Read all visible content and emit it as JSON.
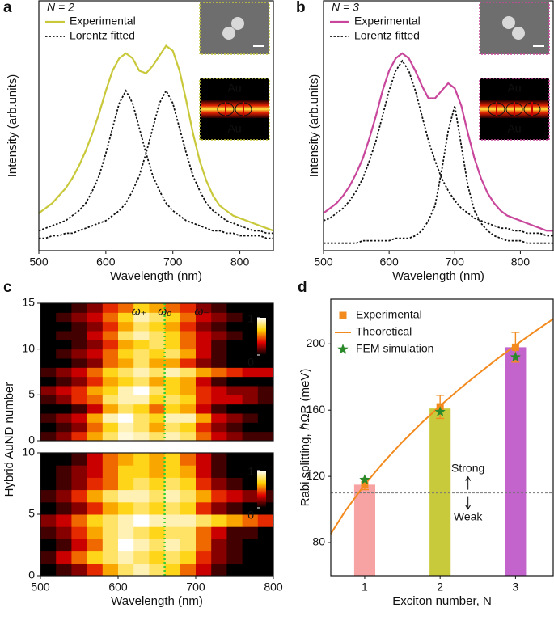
{
  "chart_data": [
    {
      "type": "line",
      "label": "a",
      "annotation": "N = 2",
      "xlabel": "Wavelength (nm)",
      "ylabel": "Intensity (arb.units)",
      "xlim": [
        500,
        850
      ],
      "ylim": [
        0,
        1
      ],
      "xticks": [
        500,
        600,
        700,
        800
      ],
      "inset_labels": [
        "Au",
        "Au"
      ],
      "x": [
        500,
        510,
        520,
        530,
        540,
        550,
        560,
        570,
        580,
        590,
        600,
        610,
        620,
        630,
        640,
        650,
        660,
        670,
        680,
        690,
        700,
        710,
        720,
        730,
        740,
        750,
        760,
        770,
        780,
        790,
        800,
        810,
        820,
        830,
        840,
        850
      ],
      "series": [
        {
          "name": "Experimental",
          "color": "#c8c83a",
          "values": [
            0.15,
            0.17,
            0.19,
            0.22,
            0.25,
            0.29,
            0.34,
            0.4,
            0.47,
            0.55,
            0.64,
            0.72,
            0.77,
            0.79,
            0.77,
            0.72,
            0.71,
            0.74,
            0.78,
            0.82,
            0.8,
            0.72,
            0.6,
            0.47,
            0.36,
            0.28,
            0.22,
            0.18,
            0.16,
            0.14,
            0.13,
            0.12,
            0.11,
            0.1,
            0.09,
            0.08
          ]
        },
        {
          "name": "Lorentz fitted",
          "color": "#111111",
          "dash": true,
          "values": [
            0.08,
            0.09,
            0.1,
            0.11,
            0.12,
            0.14,
            0.16,
            0.19,
            0.24,
            0.3,
            0.39,
            0.49,
            0.59,
            0.64,
            0.59,
            0.49,
            0.39,
            0.3,
            0.24,
            0.19,
            0.16,
            0.14,
            0.12,
            0.11,
            0.1,
            0.09,
            0.08,
            0.08,
            0.07,
            0.07,
            0.06,
            0.06,
            0.06,
            0.06,
            0.05,
            0.05
          ]
        },
        {
          "color": "#111111",
          "dash": true,
          "values": [
            0.05,
            0.05,
            0.06,
            0.06,
            0.07,
            0.07,
            0.08,
            0.09,
            0.1,
            0.11,
            0.12,
            0.14,
            0.16,
            0.19,
            0.24,
            0.3,
            0.39,
            0.49,
            0.59,
            0.64,
            0.59,
            0.49,
            0.39,
            0.3,
            0.24,
            0.19,
            0.16,
            0.14,
            0.12,
            0.11,
            0.1,
            0.09,
            0.08,
            0.08,
            0.07,
            0.07
          ]
        }
      ]
    },
    {
      "type": "line",
      "label": "b",
      "annotation": "N = 3",
      "xlabel": "Wavelength (nm)",
      "ylabel": "Intensity (arb.units)",
      "xlim": [
        500,
        850
      ],
      "ylim": [
        0,
        1
      ],
      "xticks": [
        500,
        600,
        700,
        800
      ],
      "inset_labels": [
        "Au",
        "Au"
      ],
      "x": [
        500,
        510,
        520,
        530,
        540,
        550,
        560,
        570,
        580,
        590,
        600,
        610,
        620,
        630,
        640,
        650,
        660,
        670,
        680,
        690,
        700,
        710,
        720,
        730,
        740,
        750,
        760,
        770,
        780,
        790,
        800,
        810,
        820,
        830,
        840,
        850
      ],
      "series": [
        {
          "name": "Experimental",
          "color": "#c8469b",
          "values": [
            0.15,
            0.17,
            0.19,
            0.22,
            0.26,
            0.31,
            0.37,
            0.45,
            0.54,
            0.64,
            0.72,
            0.77,
            0.79,
            0.77,
            0.72,
            0.66,
            0.61,
            0.61,
            0.64,
            0.67,
            0.65,
            0.58,
            0.47,
            0.37,
            0.29,
            0.23,
            0.19,
            0.16,
            0.14,
            0.13,
            0.12,
            0.11,
            0.1,
            0.09,
            0.08,
            0.08
          ]
        },
        {
          "name": "Lorentz fitted",
          "color": "#111111",
          "dash": true,
          "values": [
            0.12,
            0.13,
            0.15,
            0.17,
            0.2,
            0.24,
            0.29,
            0.36,
            0.44,
            0.54,
            0.64,
            0.72,
            0.76,
            0.72,
            0.64,
            0.54,
            0.44,
            0.36,
            0.29,
            0.24,
            0.2,
            0.17,
            0.15,
            0.13,
            0.12,
            0.11,
            0.1,
            0.09,
            0.09,
            0.08,
            0.08,
            0.07,
            0.07,
            0.07,
            0.06,
            0.06
          ]
        },
        {
          "color": "#111111",
          "dash": true,
          "values": [
            0.03,
            0.03,
            0.03,
            0.03,
            0.03,
            0.03,
            0.04,
            0.04,
            0.04,
            0.04,
            0.04,
            0.05,
            0.05,
            0.05,
            0.06,
            0.08,
            0.12,
            0.18,
            0.32,
            0.48,
            0.58,
            0.42,
            0.26,
            0.16,
            0.11,
            0.08,
            0.06,
            0.05,
            0.04,
            0.04,
            0.04,
            0.03,
            0.03,
            0.03,
            0.03,
            0.03
          ]
        }
      ]
    },
    {
      "type": "heatmap",
      "label": "c",
      "ylabel": "Hybrid AuND number",
      "annotations": [
        "ω₊",
        "ω₀",
        "ω₋"
      ],
      "xlim": [
        500,
        800
      ],
      "ylim": [
        0,
        15
      ],
      "yticks": [
        0,
        5,
        10,
        15
      ],
      "zlim": [
        0,
        1
      ],
      "zticks": [
        0,
        1
      ],
      "colormap": [
        "#000000",
        "#e00000",
        "#ffd000",
        "#ffffff"
      ],
      "vline": 660,
      "vline_color": "#33cc33",
      "x": [
        510,
        530,
        550,
        570,
        590,
        610,
        630,
        650,
        670,
        690,
        710,
        730,
        750,
        770,
        790
      ],
      "y": [
        0,
        1,
        2,
        3,
        4,
        5,
        6,
        7,
        8,
        9,
        10,
        11,
        12,
        13,
        14
      ],
      "z": [
        [
          0.1,
          0.2,
          0.4,
          0.6,
          0.8,
          0.95,
          0.9,
          0.8,
          0.9,
          0.8,
          0.5,
          0.3,
          0.2,
          0.1,
          0.1
        ],
        [
          0,
          0.1,
          0.2,
          0.5,
          0.7,
          0.9,
          0.8,
          0.6,
          0.8,
          0.7,
          0.4,
          0.2,
          0.1,
          0,
          0
        ],
        [
          0.1,
          0.2,
          0.3,
          0.6,
          0.9,
          1,
          0.8,
          0.7,
          0.9,
          0.9,
          0.6,
          0.3,
          0.2,
          0.1,
          0
        ],
        [
          0,
          0,
          0.1,
          0.3,
          0.6,
          0.8,
          0.7,
          0.5,
          0.7,
          0.6,
          0.3,
          0.1,
          0,
          0,
          0
        ],
        [
          0.1,
          0.2,
          0.4,
          0.5,
          0.8,
          0.9,
          0.9,
          0.7,
          0.8,
          0.7,
          0.4,
          0.3,
          0.3,
          0.2,
          0.1
        ],
        [
          0.2,
          0.3,
          0.4,
          0.6,
          0.7,
          0.9,
          1,
          0.8,
          0.7,
          0.6,
          0.4,
          0.3,
          0.2,
          0.2,
          0.1
        ],
        [
          0,
          0.1,
          0.2,
          0.4,
          0.6,
          0.7,
          0.8,
          0.6,
          0.7,
          0.6,
          0.3,
          0.1,
          0,
          0,
          0
        ],
        [
          0.1,
          0.2,
          0.3,
          0.5,
          0.7,
          0.8,
          0.9,
          0.8,
          0.9,
          0.8,
          0.6,
          0.5,
          0.4,
          0.3,
          0.3
        ],
        [
          0,
          0,
          0.1,
          0.2,
          0.5,
          0.6,
          0.8,
          0.6,
          0.6,
          0.4,
          0.2,
          0.1,
          0,
          0,
          0
        ],
        [
          0,
          0.1,
          0.2,
          0.3,
          0.5,
          0.7,
          0.8,
          0.7,
          0.8,
          0.6,
          0.3,
          0.1,
          0,
          0,
          0
        ],
        [
          0,
          0,
          0.1,
          0.2,
          0.4,
          0.6,
          0.7,
          0.8,
          0.7,
          0.5,
          0.3,
          0.1,
          0,
          0,
          0
        ],
        [
          0,
          0.1,
          0.1,
          0.3,
          0.5,
          0.8,
          0.9,
          0.8,
          0.7,
          0.5,
          0.3,
          0.2,
          0.1,
          0,
          0
        ],
        [
          0,
          0,
          0.1,
          0.2,
          0.4,
          0.6,
          0.8,
          0.7,
          0.6,
          0.4,
          0.2,
          0.1,
          0,
          0,
          0
        ],
        [
          0,
          0.1,
          0.2,
          0.3,
          0.5,
          0.7,
          0.9,
          0.8,
          0.7,
          0.5,
          0.3,
          0.2,
          0.1,
          0,
          0
        ],
        [
          0,
          0,
          0.1,
          0.2,
          0.4,
          0.5,
          0.7,
          0.6,
          0.5,
          0.4,
          0.2,
          0.1,
          0,
          0,
          0
        ]
      ]
    },
    {
      "type": "heatmap",
      "xlabel": "Wavelength (nm)",
      "xlim": [
        500,
        800
      ],
      "ylim": [
        0,
        10
      ],
      "xticks": [
        500,
        600,
        700,
        800
      ],
      "yticks": [
        0,
        5,
        10
      ],
      "zlim": [
        0,
        1
      ],
      "zticks": [
        0,
        1
      ],
      "colormap": [
        "#000000",
        "#e00000",
        "#ffd000",
        "#ffffff"
      ],
      "vline": 660,
      "vline_color": "#33cc33",
      "x": [
        510,
        530,
        550,
        570,
        590,
        610,
        630,
        650,
        670,
        690,
        710,
        730,
        750,
        770,
        790
      ],
      "y": [
        0,
        1,
        2,
        3,
        4,
        5,
        6,
        7,
        8,
        9
      ],
      "z": [
        [
          0,
          0.1,
          0.2,
          0.4,
          0.6,
          0.8,
          0.9,
          0.8,
          0.7,
          0.5,
          0.3,
          0.1,
          0,
          0,
          0
        ],
        [
          0.1,
          0.3,
          0.5,
          0.7,
          0.8,
          0.9,
          0.8,
          0.7,
          0.8,
          0.7,
          0.4,
          0.2,
          0.1,
          0,
          0
        ],
        [
          0,
          0.1,
          0.3,
          0.5,
          0.8,
          1,
          0.9,
          0.8,
          0.9,
          0.8,
          0.5,
          0.2,
          0.1,
          0,
          0
        ],
        [
          0.1,
          0.2,
          0.4,
          0.6,
          0.8,
          0.9,
          0.8,
          0.7,
          0.8,
          0.8,
          0.5,
          0.3,
          0.1,
          0.1,
          0
        ],
        [
          0.2,
          0.3,
          0.5,
          0.7,
          0.8,
          0.9,
          1,
          0.9,
          0.9,
          0.9,
          0.8,
          0.7,
          0.6,
          0.5,
          0.4
        ],
        [
          0,
          0.1,
          0.2,
          0.4,
          0.6,
          0.7,
          0.8,
          0.7,
          0.8,
          0.7,
          0.4,
          0.2,
          0.1,
          0,
          0
        ],
        [
          0.1,
          0.2,
          0.4,
          0.6,
          0.8,
          0.9,
          0.9,
          0.8,
          0.9,
          0.8,
          0.6,
          0.4,
          0.3,
          0.2,
          0.1
        ],
        [
          0,
          0.1,
          0.2,
          0.4,
          0.5,
          0.7,
          0.8,
          0.7,
          0.8,
          0.7,
          0.4,
          0.2,
          0.1,
          0,
          0
        ],
        [
          0,
          0.1,
          0.2,
          0.3,
          0.5,
          0.7,
          0.7,
          0.6,
          0.7,
          0.6,
          0.3,
          0.1,
          0,
          0,
          0
        ],
        [
          0,
          0,
          0.1,
          0.3,
          0.5,
          0.6,
          0.7,
          0.6,
          0.7,
          0.5,
          0.3,
          0.1,
          0,
          0,
          0
        ]
      ]
    },
    {
      "type": "bar",
      "label": "d",
      "xlabel": "Exciton number, N",
      "ylabel": "Rabi splitting, ℏΩR (meV)",
      "xlim": [
        0.55,
        3.5
      ],
      "ylim": [
        60,
        227
      ],
      "xticks": [
        1,
        2,
        3
      ],
      "yticks": [
        80,
        120,
        160,
        200
      ],
      "x": [
        1,
        2,
        3
      ],
      "values": [
        115,
        161,
        198
      ],
      "colors": [
        "#f7a3a3",
        "#c9c93c",
        "#c264cc"
      ],
      "threshold": 110,
      "annotations": [
        "Strong",
        "Weak"
      ],
      "series": [
        {
          "name": "Experimental",
          "kind": "errorbar",
          "color": "#f28a1e",
          "x": [
            1,
            2,
            3
          ],
          "values": [
            115,
            162,
            198
          ],
          "errors": [
            3,
            7,
            9
          ]
        },
        {
          "name": "Theoretical",
          "kind": "line",
          "color": "#f28a1e",
          "x": [
            0.55,
            0.75,
            1,
            1.25,
            1.5,
            1.75,
            2,
            2.25,
            2.5,
            2.75,
            3,
            3.25,
            3.5
          ],
          "values": [
            85.3,
            99.6,
            115,
            128.6,
            140.8,
            152.1,
            162.6,
            172.5,
            181.8,
            190.7,
            199.2,
            207.3,
            215.1
          ]
        },
        {
          "name": "FEM simulation",
          "kind": "star",
          "color": "#2a8a2a",
          "x": [
            1,
            2,
            3
          ],
          "values": [
            118,
            159,
            192
          ]
        }
      ]
    }
  ]
}
